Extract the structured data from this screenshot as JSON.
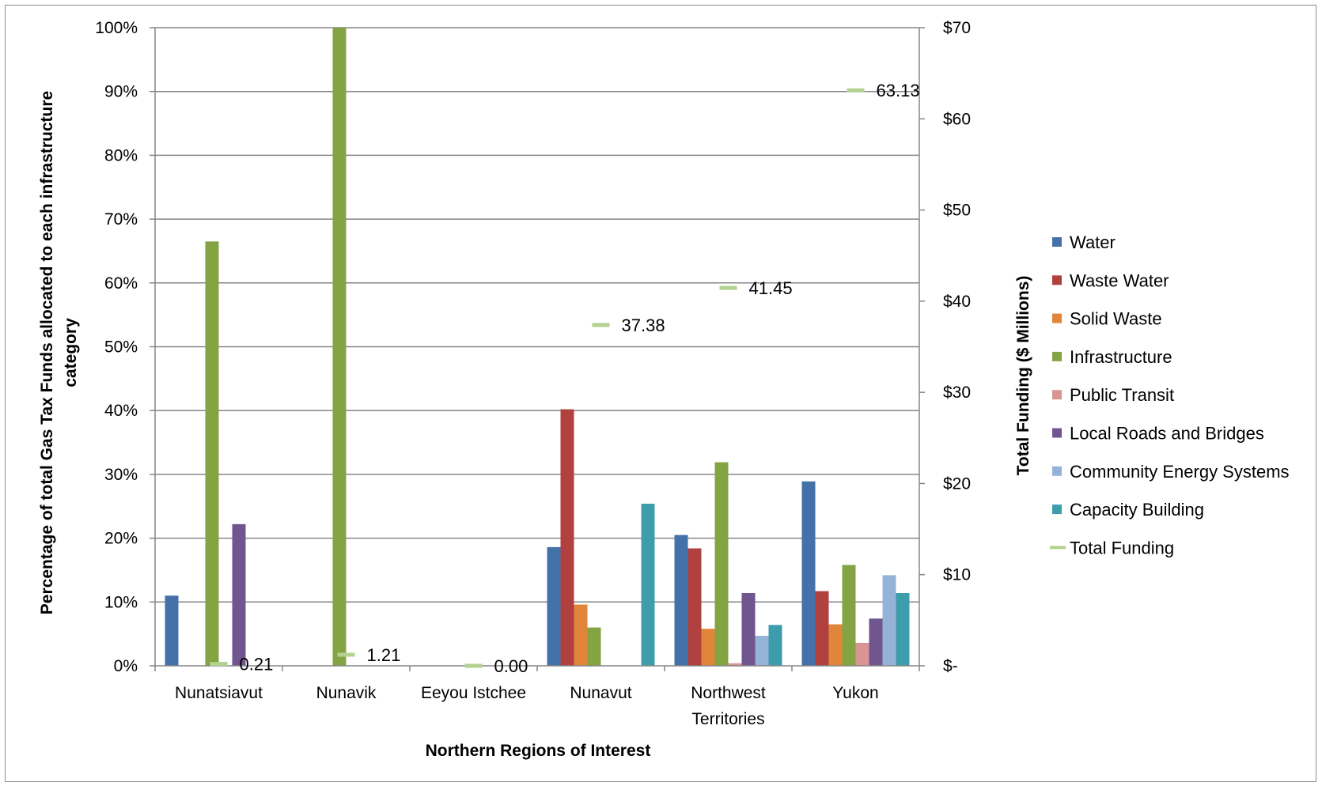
{
  "chart_data": {
    "type": "bar",
    "title": "",
    "xlabel": "Northern Regions of Interest",
    "ylabel_left": "Percentage of total Gas Tax Funds allocated to each infrastructure category",
    "ylabel_left_lines": [
      "Percentage of total Gas Tax Funds allocated to each infrastructure",
      "category"
    ],
    "ylabel_right": "Total Funding ($ Millions)",
    "ylim_left": [
      0,
      100
    ],
    "ylim_right": [
      0,
      70
    ],
    "left_ticks": [
      "0%",
      "10%",
      "20%",
      "30%",
      "40%",
      "50%",
      "60%",
      "70%",
      "80%",
      "90%",
      "100%"
    ],
    "right_ticks": [
      "$-",
      "$10",
      "$20",
      "$30",
      "$40",
      "$50",
      "$60",
      "$70"
    ],
    "categories": [
      "Nunatsiavut",
      "Nunavik",
      "Eeyou Istchee",
      "Nunavut",
      "Northwest Territories",
      "Yukon"
    ],
    "category_label_lines": [
      [
        "Nunatsiavut"
      ],
      [
        "Nunavik"
      ],
      [
        "Eeyou Istchee"
      ],
      [
        "Nunavut"
      ],
      [
        "Northwest",
        "Territories"
      ],
      [
        "Yukon"
      ]
    ],
    "grid": true,
    "legend_position": "right",
    "series": [
      {
        "name": "Water",
        "color": "#4472a8",
        "values": [
          11,
          0,
          0,
          18.6,
          20.5,
          28.9
        ]
      },
      {
        "name": "Waste Water",
        "color": "#b0413e",
        "values": [
          0,
          0,
          0,
          40.2,
          18.4,
          11.7
        ]
      },
      {
        "name": "Solid Waste",
        "color": "#e0853a",
        "values": [
          0,
          0,
          0,
          9.6,
          5.8,
          6.5
        ]
      },
      {
        "name": "Infrastructure",
        "color": "#84a343",
        "values": [
          66.5,
          100,
          0,
          6.0,
          31.9,
          15.8
        ]
      },
      {
        "name": "Public Transit",
        "color": "#d99594",
        "values": [
          0,
          0,
          0,
          0,
          0.4,
          3.6
        ]
      },
      {
        "name": "Local Roads and Bridges",
        "color": "#71558f",
        "values": [
          22.2,
          0,
          0,
          0,
          11.4,
          7.4
        ]
      },
      {
        "name": "Community Energy Systems",
        "color": "#95b3d7",
        "values": [
          0,
          0,
          0,
          0,
          4.7,
          14.2
        ]
      },
      {
        "name": "Capacity Building",
        "color": "#3d9dad",
        "values": [
          0,
          0,
          0,
          25.4,
          6.4,
          11.4
        ]
      }
    ],
    "total_funding": {
      "name": "Total Funding",
      "color": "#b3d18f",
      "axis": "right",
      "values": [
        0.21,
        1.21,
        0.0,
        37.38,
        41.45,
        63.13
      ],
      "labels": [
        "0.21",
        "1.21",
        "0.00",
        "37.38",
        "41.45",
        "63.13"
      ]
    }
  }
}
